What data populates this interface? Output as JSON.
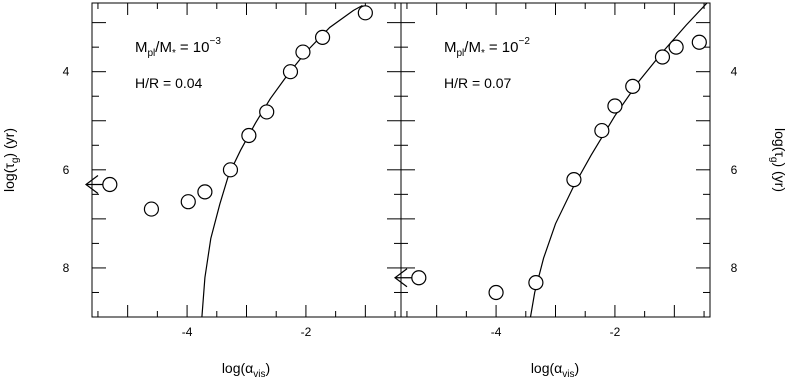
{
  "chart_data": [
    {
      "type": "scatter",
      "panel": "left",
      "xlabel_main": "log(α",
      "xlabel_sub": "vis",
      "xlabel_close": ")",
      "ylabel_main": "log(τ",
      "ylabel_sub": "g",
      "ylabel_close": ")  (yr)",
      "xlim": [
        -5.6,
        -0.4
      ],
      "ylim": [
        9,
        2.6
      ],
      "y_inverted": true,
      "x_ticks": [
        {
          "value": -4,
          "label": "-4"
        },
        {
          "value": -2,
          "label": "-2"
        }
      ],
      "y_ticks": [
        {
          "value": 4,
          "label": "4"
        },
        {
          "value": 6,
          "label": "6"
        },
        {
          "value": 8,
          "label": "8"
        }
      ],
      "annotation_mass_base": "M",
      "annotation_mass_sub1": "pl",
      "annotation_mass_mid": "/M",
      "annotation_mass_sub2": "*",
      "annotation_mass_eq": "=  10",
      "annotation_mass_exp": "−3",
      "annotation_hr": "H/R = 0.04",
      "points": [
        {
          "x": -5.3,
          "y": 6.3
        },
        {
          "x": -4.6,
          "y": 6.8
        },
        {
          "x": -3.98,
          "y": 6.65
        },
        {
          "x": -3.7,
          "y": 6.45
        },
        {
          "x": -3.27,
          "y": 6.0
        },
        {
          "x": -2.96,
          "y": 5.3
        },
        {
          "x": -2.66,
          "y": 4.82
        },
        {
          "x": -2.26,
          "y": 4.0
        },
        {
          "x": -2.05,
          "y": 3.6
        },
        {
          "x": -1.72,
          "y": 3.3
        },
        {
          "x": -1.0,
          "y": 2.8
        }
      ],
      "upper_limit_arrow": {
        "x": -5.3,
        "y": 6.3
      },
      "fit_curve": [
        {
          "x": -3.75,
          "y": 9.0
        },
        {
          "x": -3.7,
          "y": 8.2
        },
        {
          "x": -3.6,
          "y": 7.4
        },
        {
          "x": -3.45,
          "y": 6.7
        },
        {
          "x": -3.3,
          "y": 6.1
        },
        {
          "x": -3.1,
          "y": 5.6
        },
        {
          "x": -2.85,
          "y": 5.05
        },
        {
          "x": -2.6,
          "y": 4.55
        },
        {
          "x": -2.3,
          "y": 4.05
        },
        {
          "x": -2.0,
          "y": 3.6
        },
        {
          "x": -1.6,
          "y": 3.1
        },
        {
          "x": -1.2,
          "y": 2.75
        },
        {
          "x": -1.05,
          "y": 2.65
        }
      ]
    },
    {
      "type": "scatter",
      "panel": "right",
      "xlabel_main": "log(α",
      "xlabel_sub": "vis",
      "xlabel_close": ")",
      "ylabel_main": "log(τ",
      "ylabel_sub": "g",
      "ylabel_close": ")  (yr)",
      "xlim": [
        -5.6,
        -0.4
      ],
      "ylim": [
        9,
        2.6
      ],
      "y_inverted": true,
      "x_ticks": [
        {
          "value": -4,
          "label": "-4"
        },
        {
          "value": -2,
          "label": "-2"
        }
      ],
      "y_ticks": [
        {
          "value": 4,
          "label": "4"
        },
        {
          "value": 6,
          "label": "6"
        },
        {
          "value": 8,
          "label": "8"
        }
      ],
      "annotation_mass_base": "M",
      "annotation_mass_sub1": "pl",
      "annotation_mass_mid": "/M",
      "annotation_mass_sub2": "*",
      "annotation_mass_eq": "=  10",
      "annotation_mass_exp": "−2",
      "annotation_hr": "H/R = 0.07",
      "points": [
        {
          "x": -5.3,
          "y": 8.2
        },
        {
          "x": -4.0,
          "y": 8.5
        },
        {
          "x": -3.33,
          "y": 8.3
        },
        {
          "x": -2.69,
          "y": 6.2
        },
        {
          "x": -2.22,
          "y": 5.2
        },
        {
          "x": -2.0,
          "y": 4.7
        },
        {
          "x": -1.7,
          "y": 4.3
        },
        {
          "x": -1.2,
          "y": 3.7
        },
        {
          "x": -0.97,
          "y": 3.5
        },
        {
          "x": -0.58,
          "y": 3.4
        }
      ],
      "upper_limit_arrow": {
        "x": -5.3,
        "y": 8.2
      },
      "fit_curve": [
        {
          "x": -3.42,
          "y": 9.0
        },
        {
          "x": -3.35,
          "y": 8.5
        },
        {
          "x": -3.2,
          "y": 7.8
        },
        {
          "x": -3.0,
          "y": 7.1
        },
        {
          "x": -2.7,
          "y": 6.35
        },
        {
          "x": -2.4,
          "y": 5.7
        },
        {
          "x": -2.0,
          "y": 4.9
        },
        {
          "x": -1.6,
          "y": 4.2
        },
        {
          "x": -1.2,
          "y": 3.6
        },
        {
          "x": -0.8,
          "y": 3.05
        },
        {
          "x": -0.45,
          "y": 2.6
        }
      ]
    }
  ]
}
